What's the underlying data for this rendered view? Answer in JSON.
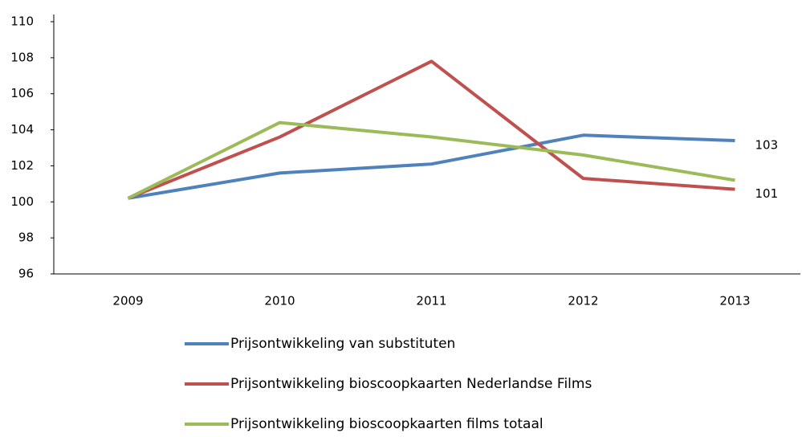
{
  "chart_data": {
    "type": "line",
    "categories": [
      "2009",
      "2010",
      "2011",
      "2012",
      "2013"
    ],
    "series": [
      {
        "name": "Prijsontwikkeling van substituten",
        "color": "#4f81bd",
        "values": [
          100.2,
          101.6,
          102.1,
          103.7,
          103.4
        ],
        "value_labels": [
          null,
          null,
          null,
          null,
          "103"
        ]
      },
      {
        "name": "Prijsontwikkeling bioscoopkaarten Nederlandse Films",
        "color": "#c0504d",
        "values": [
          100.2,
          103.6,
          107.8,
          101.3,
          100.7
        ],
        "value_labels": [
          null,
          null,
          null,
          null,
          "101"
        ]
      },
      {
        "name": "Prijsontwikkeling bioscoopkaarten films totaal",
        "color": "#9bbb59",
        "values": [
          100.2,
          104.4,
          103.6,
          102.6,
          101.2
        ]
      }
    ],
    "ylim": [
      96,
      110
    ],
    "yticks": [
      96,
      98,
      100,
      102,
      104,
      106,
      108,
      110
    ],
    "grid": false,
    "legend": "bottom"
  }
}
